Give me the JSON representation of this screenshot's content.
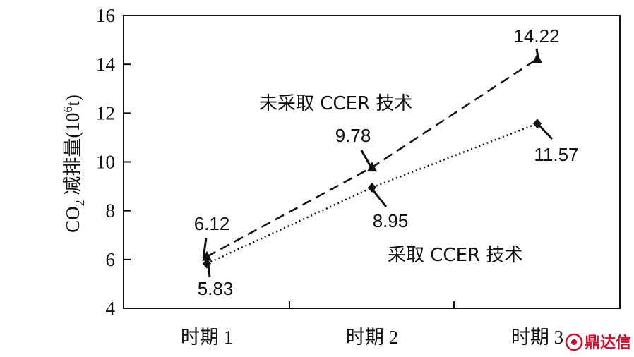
{
  "chart_data": {
    "type": "line",
    "categories": [
      "时期 1",
      "时期 2",
      "时期 3"
    ],
    "ylabel_prefix": "CO",
    "ylabel_sub": "2",
    "ylabel_mid": " 减排量(10",
    "ylabel_sup": "6",
    "ylabel_suffix": "t)",
    "ylim": [
      4,
      16
    ],
    "yticks": [
      "4",
      "6",
      "8",
      "10",
      "12",
      "14",
      "16"
    ],
    "grid": false,
    "series": [
      {
        "name": "未采取 CCER 技术",
        "values": [
          6.12,
          9.78,
          14.22
        ],
        "value_labels": [
          "6.12",
          "9.78",
          "14.22"
        ],
        "line_style": "dashed",
        "marker": "triangle",
        "color": "#111111"
      },
      {
        "name": "采取 CCER 技术",
        "values": [
          5.83,
          8.95,
          11.57
        ],
        "value_labels": [
          "5.83",
          "8.95",
          "11.57"
        ],
        "line_style": "dotted",
        "marker": "diamond",
        "color": "#111111"
      }
    ]
  },
  "watermark": {
    "text": "鼎达信",
    "color": "#c8102e"
  }
}
